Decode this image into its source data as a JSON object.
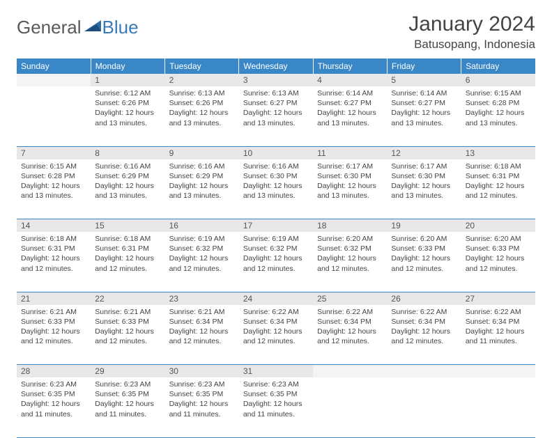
{
  "brand": {
    "part1": "General",
    "part2": "Blue"
  },
  "title": "January 2024",
  "location": "Batusopang, Indonesia",
  "header_bg": "#3a87c8",
  "daynum_bg": "#e8e8e8",
  "border_color": "#3a87c8",
  "day_names": [
    "Sunday",
    "Monday",
    "Tuesday",
    "Wednesday",
    "Thursday",
    "Friday",
    "Saturday"
  ],
  "weeks": [
    [
      null,
      {
        "n": "1",
        "sr": "6:12 AM",
        "ss": "6:26 PM",
        "dl": "12 hours and 13 minutes."
      },
      {
        "n": "2",
        "sr": "6:13 AM",
        "ss": "6:26 PM",
        "dl": "12 hours and 13 minutes."
      },
      {
        "n": "3",
        "sr": "6:13 AM",
        "ss": "6:27 PM",
        "dl": "12 hours and 13 minutes."
      },
      {
        "n": "4",
        "sr": "6:14 AM",
        "ss": "6:27 PM",
        "dl": "12 hours and 13 minutes."
      },
      {
        "n": "5",
        "sr": "6:14 AM",
        "ss": "6:27 PM",
        "dl": "12 hours and 13 minutes."
      },
      {
        "n": "6",
        "sr": "6:15 AM",
        "ss": "6:28 PM",
        "dl": "12 hours and 13 minutes."
      }
    ],
    [
      {
        "n": "7",
        "sr": "6:15 AM",
        "ss": "6:28 PM",
        "dl": "12 hours and 13 minutes."
      },
      {
        "n": "8",
        "sr": "6:16 AM",
        "ss": "6:29 PM",
        "dl": "12 hours and 13 minutes."
      },
      {
        "n": "9",
        "sr": "6:16 AM",
        "ss": "6:29 PM",
        "dl": "12 hours and 13 minutes."
      },
      {
        "n": "10",
        "sr": "6:16 AM",
        "ss": "6:30 PM",
        "dl": "12 hours and 13 minutes."
      },
      {
        "n": "11",
        "sr": "6:17 AM",
        "ss": "6:30 PM",
        "dl": "12 hours and 13 minutes."
      },
      {
        "n": "12",
        "sr": "6:17 AM",
        "ss": "6:30 PM",
        "dl": "12 hours and 13 minutes."
      },
      {
        "n": "13",
        "sr": "6:18 AM",
        "ss": "6:31 PM",
        "dl": "12 hours and 12 minutes."
      }
    ],
    [
      {
        "n": "14",
        "sr": "6:18 AM",
        "ss": "6:31 PM",
        "dl": "12 hours and 12 minutes."
      },
      {
        "n": "15",
        "sr": "6:18 AM",
        "ss": "6:31 PM",
        "dl": "12 hours and 12 minutes."
      },
      {
        "n": "16",
        "sr": "6:19 AM",
        "ss": "6:32 PM",
        "dl": "12 hours and 12 minutes."
      },
      {
        "n": "17",
        "sr": "6:19 AM",
        "ss": "6:32 PM",
        "dl": "12 hours and 12 minutes."
      },
      {
        "n": "18",
        "sr": "6:20 AM",
        "ss": "6:32 PM",
        "dl": "12 hours and 12 minutes."
      },
      {
        "n": "19",
        "sr": "6:20 AM",
        "ss": "6:33 PM",
        "dl": "12 hours and 12 minutes."
      },
      {
        "n": "20",
        "sr": "6:20 AM",
        "ss": "6:33 PM",
        "dl": "12 hours and 12 minutes."
      }
    ],
    [
      {
        "n": "21",
        "sr": "6:21 AM",
        "ss": "6:33 PM",
        "dl": "12 hours and 12 minutes."
      },
      {
        "n": "22",
        "sr": "6:21 AM",
        "ss": "6:33 PM",
        "dl": "12 hours and 12 minutes."
      },
      {
        "n": "23",
        "sr": "6:21 AM",
        "ss": "6:34 PM",
        "dl": "12 hours and 12 minutes."
      },
      {
        "n": "24",
        "sr": "6:22 AM",
        "ss": "6:34 PM",
        "dl": "12 hours and 12 minutes."
      },
      {
        "n": "25",
        "sr": "6:22 AM",
        "ss": "6:34 PM",
        "dl": "12 hours and 12 minutes."
      },
      {
        "n": "26",
        "sr": "6:22 AM",
        "ss": "6:34 PM",
        "dl": "12 hours and 12 minutes."
      },
      {
        "n": "27",
        "sr": "6:22 AM",
        "ss": "6:34 PM",
        "dl": "12 hours and 11 minutes."
      }
    ],
    [
      {
        "n": "28",
        "sr": "6:23 AM",
        "ss": "6:35 PM",
        "dl": "12 hours and 11 minutes."
      },
      {
        "n": "29",
        "sr": "6:23 AM",
        "ss": "6:35 PM",
        "dl": "12 hours and 11 minutes."
      },
      {
        "n": "30",
        "sr": "6:23 AM",
        "ss": "6:35 PM",
        "dl": "12 hours and 11 minutes."
      },
      {
        "n": "31",
        "sr": "6:23 AM",
        "ss": "6:35 PM",
        "dl": "12 hours and 11 minutes."
      },
      null,
      null,
      null
    ]
  ],
  "labels": {
    "sunrise": "Sunrise:",
    "sunset": "Sunset:",
    "daylight": "Daylight:"
  }
}
